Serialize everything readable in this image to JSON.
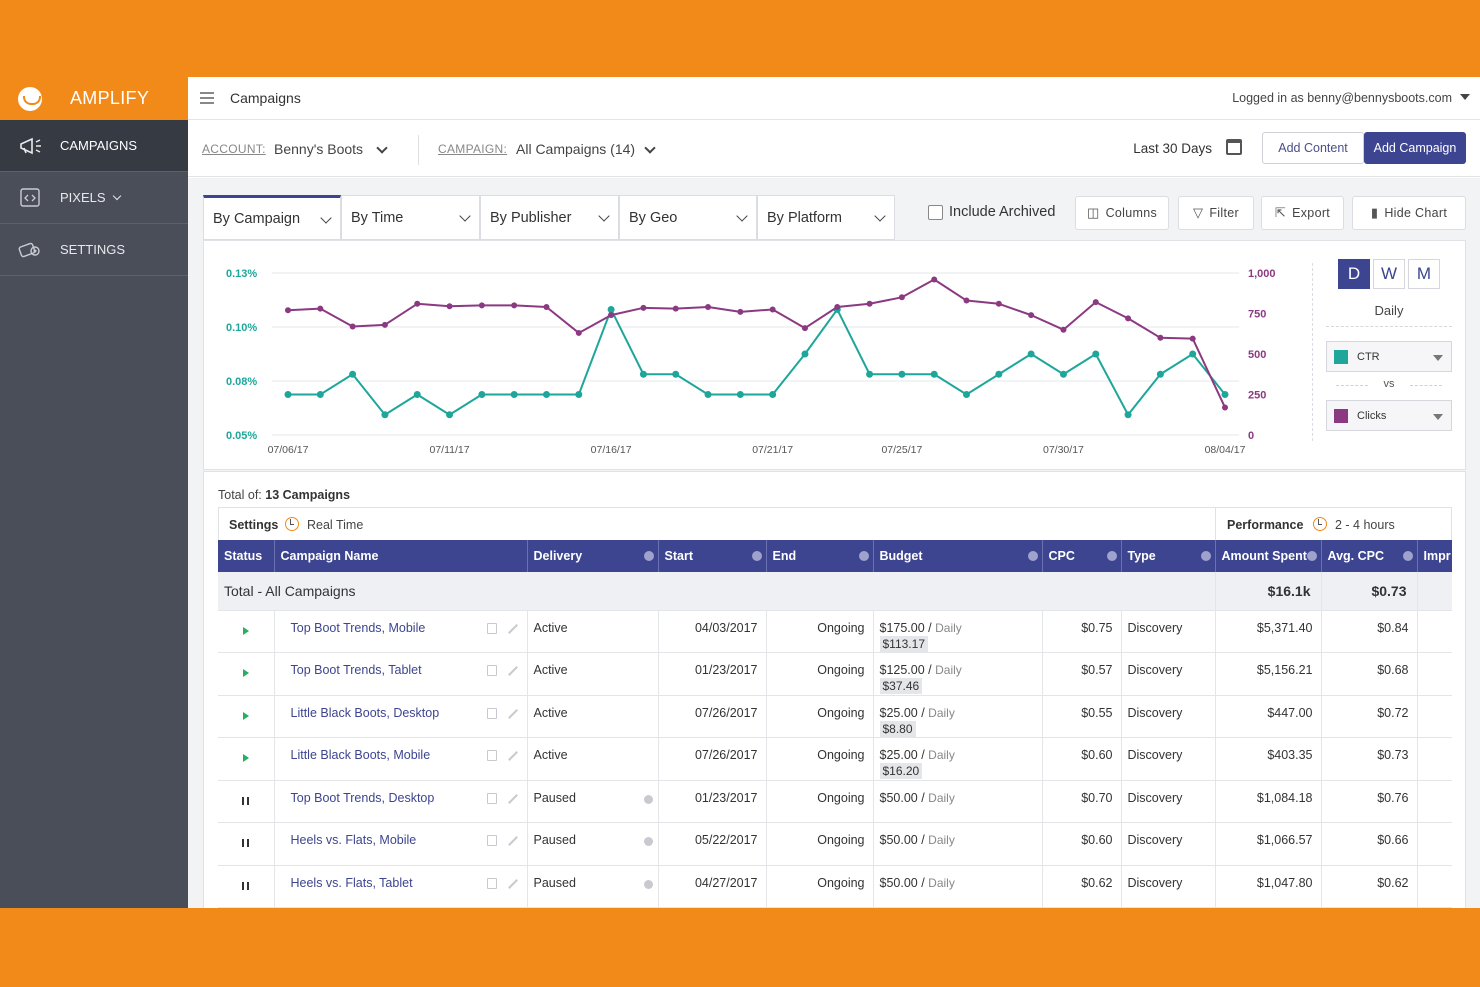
{
  "app": {
    "brand": "AMPLIFY",
    "page_title": "Campaigns",
    "user": "Logged in as benny@bennysboots.com"
  },
  "sidebar": {
    "items": [
      {
        "label": "CAMPAIGNS",
        "icon": "megaphone-icon",
        "active": true
      },
      {
        "label": "PIXELS",
        "icon": "code-icon",
        "active": false
      },
      {
        "label": "SETTINGS",
        "icon": "settings-icon",
        "active": false
      }
    ]
  },
  "filterbar": {
    "account_label": "ACCOUNT:",
    "account_value": "Benny's Boots",
    "campaign_label": "CAMPAIGN:",
    "campaign_value": "All Campaigns (14)",
    "date_range": "Last 30 Days",
    "add_content": "Add Content",
    "add_campaign": "Add Campaign"
  },
  "tabs": [
    "By Campaign",
    "By Time",
    "By Publisher",
    "By Geo",
    "By Platform"
  ],
  "toolbar": {
    "include_archived": "Include Archived",
    "columns": "Columns",
    "filter": "Filter",
    "export": "Export",
    "hide_chart": "Hide Chart"
  },
  "chart_controls": {
    "periods": [
      "D",
      "W",
      "M"
    ],
    "active_period": "D",
    "period_label": "Daily",
    "metric_a": "CTR",
    "vs": "vs",
    "metric_b": "Clicks",
    "color_a": "#1fa69a",
    "color_b": "#8b3a82"
  },
  "chart_data": {
    "type": "line",
    "x_ticks": [
      "07/06/17",
      "07/11/17",
      "07/16/17",
      "07/21/17",
      "07/25/17",
      "07/30/17",
      "08/04/17"
    ],
    "y_left_ticks": [
      "0.13%",
      "0.10%",
      "0.08%",
      "0.05%"
    ],
    "y_right_ticks": [
      "1,000",
      "750",
      "500",
      "250",
      "0"
    ],
    "y_left_range": [
      0.05,
      0.13
    ],
    "y_right_range": [
      0,
      1000
    ],
    "series": [
      {
        "name": "CTR",
        "axis": "left",
        "color": "#1fa69a",
        "values": [
          0.07,
          0.07,
          0.08,
          0.06,
          0.07,
          0.06,
          0.07,
          0.07,
          0.07,
          0.07,
          0.112,
          0.08,
          0.08,
          0.07,
          0.07,
          0.07,
          0.09,
          0.112,
          0.08,
          0.08,
          0.08,
          0.07,
          0.08,
          0.09,
          0.08,
          0.09,
          0.06,
          0.08,
          0.09,
          0.07
        ]
      },
      {
        "name": "Clicks",
        "axis": "right",
        "color": "#8b3a82",
        "values": [
          770,
          780,
          670,
          680,
          810,
          795,
          800,
          800,
          790,
          630,
          740,
          785,
          780,
          790,
          760,
          775,
          660,
          790,
          810,
          850,
          960,
          830,
          810,
          740,
          650,
          820,
          720,
          600,
          595,
          170
        ]
      }
    ]
  },
  "table": {
    "total_of_prefix": "Total of:",
    "total_of_count": "13 Campaigns",
    "settings_label": "Settings",
    "realtime_label": "Real Time",
    "performance_label": "Performance",
    "hours_label": "2 - 4 hours",
    "headers": [
      "Status",
      "Campaign Name",
      "Delivery",
      "Start",
      "End",
      "Budget",
      "CPC",
      "Type",
      "Amount Spent",
      "Avg. CPC",
      "Impr"
    ],
    "total_row": {
      "label": "Total - All Campaigns",
      "amount": "$16.1k",
      "avg_cpc": "$0.73"
    },
    "rows": [
      {
        "status": "play",
        "name": "Top Boot Trends, Mobile",
        "delivery": "Active",
        "start": "04/03/2017",
        "end": "Ongoing",
        "budget": "$175.00",
        "daily": "Daily",
        "budget_sub": "$113.17",
        "cpc": "$0.75",
        "type": "Discovery",
        "spent": "$5,371.40",
        "avg_cpc": "$0.84"
      },
      {
        "status": "play",
        "name": "Top Boot Trends, Tablet",
        "delivery": "Active",
        "start": "01/23/2017",
        "end": "Ongoing",
        "budget": "$125.00",
        "daily": "Daily",
        "budget_sub": "$37.46",
        "cpc": "$0.57",
        "type": "Discovery",
        "spent": "$5,156.21",
        "avg_cpc": "$0.68"
      },
      {
        "status": "play",
        "name": "Little Black Boots, Desktop",
        "delivery": "Active",
        "start": "07/26/2017",
        "end": "Ongoing",
        "budget": "$25.00",
        "daily": "Daily",
        "budget_sub": "$8.80",
        "cpc": "$0.55",
        "type": "Discovery",
        "spent": "$447.00",
        "avg_cpc": "$0.72"
      },
      {
        "status": "play",
        "name": "Little Black Boots, Mobile",
        "delivery": "Active",
        "start": "07/26/2017",
        "end": "Ongoing",
        "budget": "$25.00",
        "daily": "Daily",
        "budget_sub": "$16.20",
        "cpc": "$0.60",
        "type": "Discovery",
        "spent": "$403.35",
        "avg_cpc": "$0.73"
      },
      {
        "status": "pause",
        "name": "Top Boot Trends, Desktop",
        "delivery": "Paused",
        "start": "01/23/2017",
        "end": "Ongoing",
        "budget": "$50.00",
        "daily": "Daily",
        "budget_sub": "",
        "cpc": "$0.70",
        "type": "Discovery",
        "spent": "$1,084.18",
        "avg_cpc": "$0.76"
      },
      {
        "status": "pause",
        "name": "Heels vs. Flats, Mobile",
        "delivery": "Paused",
        "start": "05/22/2017",
        "end": "Ongoing",
        "budget": "$50.00",
        "daily": "Daily",
        "budget_sub": "",
        "cpc": "$0.60",
        "type": "Discovery",
        "spent": "$1,066.57",
        "avg_cpc": "$0.66"
      },
      {
        "status": "pause",
        "name": "Heels vs. Flats, Tablet",
        "delivery": "Paused",
        "start": "04/27/2017",
        "end": "Ongoing",
        "budget": "$50.00",
        "daily": "Daily",
        "budget_sub": "",
        "cpc": "$0.62",
        "type": "Discovery",
        "spent": "$1,047.80",
        "avg_cpc": "$0.62"
      }
    ]
  }
}
